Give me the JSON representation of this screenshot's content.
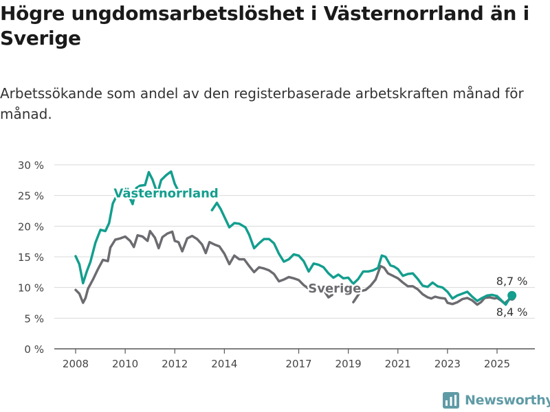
{
  "title": "Högre ungdomsarbetslöshet i Västernorrland än i Sverige",
  "subtitle": "Arbetssökande som andel av den registerbaserade arbetskraften månad för månad.",
  "brand": {
    "name": "Newsworthy",
    "icon": "newsworthy-logo-icon",
    "color": "#5f9ba6"
  },
  "chart_data": {
    "type": "line",
    "x_unit": "year",
    "xlim": [
      2007.5,
      2026.5
    ],
    "ylim": [
      0,
      30
    ],
    "yticks": [
      {
        "value": 0,
        "label": "0 %"
      },
      {
        "value": 5,
        "label": "5 %"
      },
      {
        "value": 10,
        "label": "10 %"
      },
      {
        "value": 15,
        "label": "15 %"
      },
      {
        "value": 20,
        "label": "20 %"
      },
      {
        "value": 25,
        "label": "25 %"
      },
      {
        "value": 30,
        "label": "30 %"
      }
    ],
    "xticks": [
      {
        "value": 2008,
        "label": "2008"
      },
      {
        "value": 2010,
        "label": "2010"
      },
      {
        "value": 2012,
        "label": "2012"
      },
      {
        "value": 2014,
        "label": "2014"
      },
      {
        "value": 2017,
        "label": "2017"
      },
      {
        "value": 2019,
        "label": "2019"
      },
      {
        "value": 2021,
        "label": "2021"
      },
      {
        "value": 2023,
        "label": "2023"
      },
      {
        "value": 2025,
        "label": "2025"
      }
    ],
    "grid": true,
    "series": [
      {
        "name": "Sverige",
        "color": "#6b6b70",
        "end_label": "8,4 %",
        "points": [
          [
            2008.0,
            9.6
          ],
          [
            2008.15,
            9.0
          ],
          [
            2008.3,
            7.5
          ],
          [
            2008.4,
            8.3
          ],
          [
            2008.5,
            9.8
          ],
          [
            2008.7,
            11.3
          ],
          [
            2008.9,
            13.0
          ],
          [
            2009.1,
            14.5
          ],
          [
            2009.3,
            14.3
          ],
          [
            2009.4,
            16.5
          ],
          [
            2009.6,
            17.8
          ],
          [
            2009.8,
            18.0
          ],
          [
            2010.0,
            18.3
          ],
          [
            2010.2,
            17.6
          ],
          [
            2010.35,
            16.6
          ],
          [
            2010.5,
            18.5
          ],
          [
            2010.7,
            18.3
          ],
          [
            2010.9,
            17.6
          ],
          [
            2011.0,
            19.2
          ],
          [
            2011.2,
            18.1
          ],
          [
            2011.35,
            16.4
          ],
          [
            2011.5,
            18.2
          ],
          [
            2011.7,
            18.8
          ],
          [
            2011.9,
            19.1
          ],
          [
            2012.0,
            17.6
          ],
          [
            2012.15,
            17.4
          ],
          [
            2012.3,
            15.9
          ],
          [
            2012.5,
            18.0
          ],
          [
            2012.7,
            18.4
          ],
          [
            2012.9,
            17.9
          ],
          [
            2013.1,
            17.0
          ],
          [
            2013.25,
            15.6
          ],
          [
            2013.4,
            17.4
          ],
          [
            2013.6,
            17.0
          ],
          [
            2013.8,
            16.7
          ],
          [
            2014.0,
            15.5
          ],
          [
            2014.2,
            13.8
          ],
          [
            2014.4,
            15.2
          ],
          [
            2014.6,
            14.6
          ],
          [
            2014.8,
            14.6
          ],
          [
            2015.0,
            13.5
          ],
          [
            2015.2,
            12.5
          ],
          [
            2015.4,
            13.3
          ],
          [
            2015.6,
            13.1
          ],
          [
            2015.8,
            12.8
          ],
          [
            2016.0,
            12.2
          ],
          [
            2016.2,
            11.0
          ],
          [
            2016.4,
            11.3
          ],
          [
            2016.6,
            11.7
          ],
          [
            2016.8,
            11.5
          ],
          [
            2017.0,
            11.2
          ],
          [
            2017.2,
            10.4
          ],
          [
            2017.4,
            9.8
          ],
          [
            2017.6,
            10.4
          ],
          [
            2017.8,
            10.3
          ],
          [
            2018.0,
            9.6
          ],
          [
            2018.2,
            8.4
          ],
          [
            2018.35,
            8.8
          ]
        ]
      },
      {
        "name": "Sverige",
        "color": "#6b6b70",
        "points": [
          [
            2019.2,
            7.6
          ],
          [
            2019.35,
            8.5
          ],
          [
            2019.5,
            9.4
          ],
          [
            2019.7,
            9.6
          ],
          [
            2019.9,
            10.3
          ],
          [
            2020.1,
            11.3
          ],
          [
            2020.3,
            13.5
          ],
          [
            2020.45,
            13.2
          ],
          [
            2020.6,
            12.3
          ],
          [
            2020.8,
            11.9
          ],
          [
            2021.0,
            11.5
          ],
          [
            2021.2,
            10.8
          ],
          [
            2021.4,
            10.2
          ],
          [
            2021.6,
            10.2
          ],
          [
            2021.8,
            9.7
          ],
          [
            2022.0,
            8.9
          ],
          [
            2022.2,
            8.4
          ],
          [
            2022.35,
            8.2
          ],
          [
            2022.5,
            8.5
          ],
          [
            2022.7,
            8.3
          ],
          [
            2022.9,
            8.2
          ],
          [
            2023.0,
            7.5
          ],
          [
            2023.2,
            7.3
          ],
          [
            2023.4,
            7.6
          ],
          [
            2023.6,
            8.1
          ],
          [
            2023.8,
            8.3
          ],
          [
            2024.0,
            7.9
          ],
          [
            2024.2,
            7.2
          ],
          [
            2024.35,
            7.6
          ],
          [
            2024.5,
            8.3
          ],
          [
            2024.7,
            8.4
          ],
          [
            2024.9,
            8.2
          ],
          [
            2025.0,
            8.3
          ],
          [
            2025.15,
            7.9
          ],
          [
            2025.3,
            7.4
          ],
          [
            2025.45,
            7.9
          ],
          [
            2025.6,
            8.4
          ]
        ]
      },
      {
        "name": "Västernorrland",
        "color": "#139e8e",
        "end_label": "8,7 %",
        "points": [
          [
            2008.0,
            15.1
          ],
          [
            2008.15,
            13.8
          ],
          [
            2008.3,
            10.7
          ],
          [
            2008.45,
            12.6
          ],
          [
            2008.6,
            14.2
          ],
          [
            2008.8,
            17.3
          ],
          [
            2009.0,
            19.4
          ],
          [
            2009.2,
            19.2
          ],
          [
            2009.35,
            20.5
          ],
          [
            2009.5,
            23.7
          ],
          [
            2009.7,
            25.3
          ],
          [
            2009.9,
            26.2
          ],
          [
            2010.1,
            25.4
          ],
          [
            2010.3,
            23.6
          ],
          [
            2010.45,
            26.2
          ],
          [
            2010.6,
            26.6
          ],
          [
            2010.8,
            26.7
          ],
          [
            2010.95,
            28.8
          ],
          [
            2011.1,
            27.6
          ],
          [
            2011.3,
            25.3
          ],
          [
            2011.45,
            27.5
          ],
          [
            2011.65,
            28.3
          ],
          [
            2011.85,
            28.9
          ],
          [
            2012.0,
            26.9
          ],
          [
            2012.2,
            25.3
          ]
        ]
      },
      {
        "name": "Västernorrland",
        "color": "#139e8e",
        "points": [
          [
            2013.5,
            22.6
          ],
          [
            2013.7,
            23.8
          ],
          [
            2013.85,
            22.8
          ],
          [
            2014.0,
            21.5
          ],
          [
            2014.2,
            19.8
          ],
          [
            2014.4,
            20.5
          ],
          [
            2014.6,
            20.4
          ],
          [
            2014.85,
            19.8
          ],
          [
            2015.0,
            18.6
          ],
          [
            2015.2,
            16.4
          ],
          [
            2015.4,
            17.2
          ],
          [
            2015.6,
            17.9
          ],
          [
            2015.8,
            17.9
          ],
          [
            2016.0,
            17.2
          ],
          [
            2016.2,
            15.5
          ],
          [
            2016.4,
            14.2
          ],
          [
            2016.6,
            14.6
          ],
          [
            2016.8,
            15.4
          ],
          [
            2017.0,
            15.2
          ],
          [
            2017.2,
            14.3
          ],
          [
            2017.4,
            12.6
          ],
          [
            2017.6,
            13.9
          ],
          [
            2017.8,
            13.7
          ],
          [
            2018.0,
            13.3
          ],
          [
            2018.2,
            12.3
          ],
          [
            2018.4,
            11.6
          ],
          [
            2018.6,
            12.1
          ],
          [
            2018.8,
            11.5
          ],
          [
            2019.0,
            11.6
          ],
          [
            2019.2,
            10.6
          ],
          [
            2019.4,
            11.4
          ],
          [
            2019.6,
            12.6
          ],
          [
            2019.8,
            12.6
          ],
          [
            2020.0,
            12.8
          ],
          [
            2020.2,
            13.2
          ],
          [
            2020.35,
            15.2
          ],
          [
            2020.5,
            15.0
          ],
          [
            2020.7,
            13.6
          ],
          [
            2020.85,
            13.4
          ],
          [
            2021.0,
            13.0
          ],
          [
            2021.2,
            11.9
          ],
          [
            2021.4,
            12.2
          ],
          [
            2021.6,
            12.3
          ],
          [
            2021.8,
            11.4
          ],
          [
            2022.0,
            10.3
          ],
          [
            2022.2,
            10.1
          ],
          [
            2022.4,
            10.8
          ],
          [
            2022.6,
            10.2
          ],
          [
            2022.8,
            10.0
          ],
          [
            2023.0,
            9.3
          ],
          [
            2023.2,
            8.2
          ],
          [
            2023.4,
            8.7
          ],
          [
            2023.6,
            9.0
          ],
          [
            2023.8,
            9.3
          ],
          [
            2024.0,
            8.5
          ],
          [
            2024.2,
            7.8
          ],
          [
            2024.4,
            8.3
          ],
          [
            2024.6,
            8.7
          ],
          [
            2024.8,
            8.8
          ],
          [
            2025.0,
            8.6
          ],
          [
            2025.2,
            7.8
          ],
          [
            2025.35,
            7.2
          ],
          [
            2025.5,
            8.2
          ],
          [
            2025.6,
            8.7
          ]
        ]
      }
    ],
    "series_labels": [
      {
        "name": "Västernorrland",
        "color": "#139e8e",
        "x": 2011.65,
        "y": 24.7
      },
      {
        "name": "Sverige",
        "color": "#6b6b70",
        "x": 2018.45,
        "y": 9.2
      }
    ]
  }
}
